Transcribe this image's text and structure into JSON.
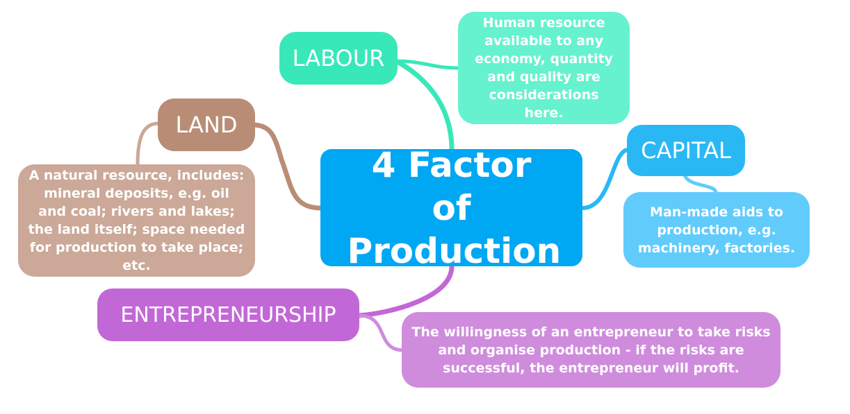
{
  "central": {
    "label": "4 Factor of Production"
  },
  "topics": {
    "labour": "LABOUR",
    "land": "LAND",
    "capital": "CAPITAL",
    "entrepreneurship": "ENTREPRENEURSHIP"
  },
  "notes": {
    "labour": "Human resource available to any economy, quantity and quality are considerations here.",
    "land": "A natural resource, includes: mineral deposits, e.g. oil and coal; rivers and lakes; the land itself; space needed for production to take place; etc.",
    "capital": "Man-made aids to production, e.g. machinery, factories.",
    "entrepreneurship": "The willingness of an entrepreneur to take risks and organise production - if the risks are successful, the entrepreneur will profit."
  },
  "colors": {
    "central": "#00a7f3",
    "labour": "#39e8b8",
    "land": "#b98d75",
    "capital": "#2ab8f5",
    "entrepreneurship": "#c268d6"
  }
}
